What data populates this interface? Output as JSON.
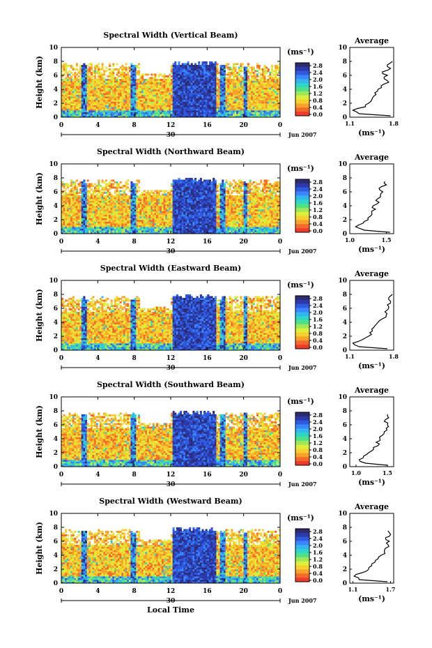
{
  "figure": {
    "x_axis_label": "Local Time",
    "month_label": "Jun 2007",
    "day_label": "30"
  },
  "colorbar": {
    "unit_label": "(ms⁻¹)",
    "ticks": [
      "2.8",
      "2.4",
      "2.0",
      "1.6",
      "1.2",
      "0.8",
      "0.4",
      "0.0"
    ],
    "colors": [
      "#2e2a6e",
      "#2b3aa8",
      "#2f5ae0",
      "#3a86ff",
      "#35b5f0",
      "#2ed6c8",
      "#4fe08a",
      "#9ce85a",
      "#dcef3c",
      "#f6d12e",
      "#f7a22a",
      "#f36a2a",
      "#ee3b2a"
    ]
  },
  "chart_data": [
    {
      "type": "heatmap",
      "title": "Spectral Width (Vertical Beam)",
      "ylabel": "Height (km)",
      "xlabel": "Local Time",
      "x_ticks": [
        "0",
        "4",
        "8",
        "12",
        "16",
        "20",
        "0"
      ],
      "y_ticks": [
        "0",
        "2",
        "4",
        "6",
        "8",
        "10"
      ],
      "xlim": [
        0,
        24
      ],
      "ylim": [
        0,
        10
      ],
      "colorbar_ticks": [
        "2.8",
        "2.4",
        "2.0",
        "1.6",
        "1.2",
        "0.8",
        "0.4",
        "0.0"
      ],
      "colorbar_range": [
        0,
        3.0
      ],
      "data_top_km": 7.8,
      "convective_bands_hours": [
        [
          2.2,
          2.8
        ],
        [
          7.7,
          8.2
        ],
        [
          12.2,
          17.0
        ],
        [
          17.4,
          18.0
        ],
        [
          20.0,
          20.4
        ]
      ],
      "average_profile": {
        "title": "Average",
        "xlabel": "(ms⁻¹)",
        "x_ticks": [
          "1.1",
          "1.8"
        ],
        "xlim": [
          1.1,
          1.8
        ],
        "ylim": [
          0,
          10
        ],
        "y_ticks": [
          "0",
          "2",
          "4",
          "6",
          "8",
          "10"
        ],
        "height_km": [
          0.2,
          0.5,
          1.0,
          1.5,
          2.0,
          2.5,
          3.0,
          3.5,
          4.0,
          4.5,
          5.0,
          5.5,
          6.0,
          6.5,
          7.0,
          7.5,
          8.0
        ],
        "width_ms": [
          1.75,
          1.25,
          1.15,
          1.35,
          1.4,
          1.45,
          1.48,
          1.5,
          1.55,
          1.6,
          1.72,
          1.65,
          1.7,
          1.62,
          1.75,
          1.7,
          1.78
        ]
      }
    },
    {
      "type": "heatmap",
      "title": "Spectral Width (Northward Beam)",
      "ylabel": "Height (km)",
      "xlabel": "Local Time",
      "x_ticks": [
        "0",
        "4",
        "8",
        "12",
        "16",
        "20",
        "0"
      ],
      "y_ticks": [
        "0",
        "2",
        "4",
        "6",
        "8",
        "10"
      ],
      "xlim": [
        0,
        24
      ],
      "ylim": [
        0,
        10
      ],
      "colorbar_ticks": [
        "2.8",
        "2.4",
        "2.0",
        "1.6",
        "1.2",
        "0.8",
        "0.4",
        "0.0"
      ],
      "colorbar_range": [
        0,
        3.0
      ],
      "data_top_km": 7.8,
      "convective_bands_hours": [
        [
          2.2,
          2.8
        ],
        [
          7.7,
          8.2
        ],
        [
          12.2,
          17.0
        ],
        [
          17.4,
          18.0
        ],
        [
          20.0,
          20.4
        ]
      ],
      "average_profile": {
        "title": "Average",
        "xlabel": "(ms⁻¹)",
        "x_ticks": [
          "1.0",
          "1.5"
        ],
        "xlim": [
          1.0,
          1.6
        ],
        "ylim": [
          0,
          10
        ],
        "y_ticks": [
          "0",
          "2",
          "4",
          "6",
          "8",
          "10"
        ],
        "height_km": [
          0.2,
          0.5,
          1.0,
          1.5,
          2.0,
          2.5,
          3.0,
          3.5,
          4.0,
          4.5,
          5.0,
          5.5,
          6.0,
          6.5,
          7.0,
          7.5
        ],
        "width_ms": [
          1.55,
          1.2,
          1.08,
          1.18,
          1.25,
          1.28,
          1.3,
          1.35,
          1.32,
          1.4,
          1.38,
          1.42,
          1.45,
          1.4,
          1.5,
          1.48
        ]
      }
    },
    {
      "type": "heatmap",
      "title": "Spectral Width (Eastward Beam)",
      "ylabel": "Height (km)",
      "xlabel": "Local Time",
      "x_ticks": [
        "0",
        "4",
        "8",
        "12",
        "16",
        "20",
        "0"
      ],
      "y_ticks": [
        "0",
        "2",
        "4",
        "6",
        "8",
        "10"
      ],
      "xlim": [
        0,
        24
      ],
      "ylim": [
        0,
        10
      ],
      "colorbar_ticks": [
        "2.8",
        "2.4",
        "2.0",
        "1.6",
        "1.2",
        "0.8",
        "0.4",
        "0.0"
      ],
      "colorbar_range": [
        0,
        3.0
      ],
      "data_top_km": 7.8,
      "convective_bands_hours": [
        [
          2.2,
          2.8
        ],
        [
          7.7,
          8.2
        ],
        [
          12.2,
          17.0
        ],
        [
          17.4,
          18.0
        ],
        [
          20.0,
          20.4
        ]
      ],
      "average_profile": {
        "title": "Average",
        "xlabel": "(ms⁻¹)",
        "x_ticks": [
          "1.1",
          "1.8"
        ],
        "xlim": [
          1.1,
          1.8
        ],
        "ylim": [
          0,
          10
        ],
        "y_ticks": [
          "0",
          "2",
          "4",
          "6",
          "8",
          "10"
        ],
        "height_km": [
          0.2,
          0.5,
          1.0,
          1.5,
          2.0,
          2.5,
          3.0,
          3.5,
          4.0,
          4.5,
          5.0,
          5.5,
          6.0,
          6.5,
          7.0,
          7.5,
          8.0
        ],
        "width_ms": [
          1.7,
          1.25,
          1.15,
          1.3,
          1.4,
          1.42,
          1.45,
          1.5,
          1.55,
          1.62,
          1.68,
          1.66,
          1.72,
          1.7,
          1.75,
          1.72,
          1.78
        ]
      }
    },
    {
      "type": "heatmap",
      "title": "Spectral Width (Southward Beam)",
      "ylabel": "Height (km)",
      "xlabel": "Local Time",
      "x_ticks": [
        "0",
        "4",
        "8",
        "12",
        "16",
        "20",
        "0"
      ],
      "y_ticks": [
        "0",
        "2",
        "4",
        "6",
        "8",
        "10"
      ],
      "xlim": [
        0,
        24
      ],
      "ylim": [
        0,
        10
      ],
      "colorbar_ticks": [
        "2.8",
        "2.4",
        "2.0",
        "1.6",
        "1.2",
        "0.8",
        "0.4",
        "0.0"
      ],
      "colorbar_range": [
        0,
        3.0
      ],
      "data_top_km": 7.8,
      "convective_bands_hours": [
        [
          2.2,
          2.8
        ],
        [
          7.7,
          8.2
        ],
        [
          12.2,
          17.0
        ],
        [
          17.4,
          18.0
        ],
        [
          20.0,
          20.4
        ]
      ],
      "average_profile": {
        "title": "Average",
        "xlabel": "(ms⁻¹)",
        "x_ticks": [
          "1.0",
          "1.5"
        ],
        "xlim": [
          0.9,
          1.6
        ],
        "ylim": [
          0,
          10
        ],
        "y_ticks": [
          "0",
          "2",
          "4",
          "6",
          "8",
          "10"
        ],
        "height_km": [
          0.2,
          0.5,
          1.0,
          1.5,
          2.0,
          2.5,
          3.0,
          3.5,
          4.0,
          4.5,
          5.0,
          5.5,
          6.0,
          6.5,
          7.0,
          7.5
        ],
        "width_ms": [
          1.5,
          1.15,
          1.05,
          1.12,
          1.2,
          1.28,
          1.35,
          1.32,
          1.38,
          1.42,
          1.45,
          1.48,
          1.5,
          1.45,
          1.52,
          1.5
        ]
      }
    },
    {
      "type": "heatmap",
      "title": "Spectral Width (Westward Beam)",
      "ylabel": "Height (km)",
      "xlabel": "Local Time",
      "x_ticks": [
        "0",
        "4",
        "8",
        "12",
        "16",
        "20",
        "0"
      ],
      "y_ticks": [
        "0",
        "2",
        "4",
        "6",
        "8",
        "10"
      ],
      "xlim": [
        0,
        24
      ],
      "ylim": [
        0,
        10
      ],
      "colorbar_ticks": [
        "2.8",
        "2.4",
        "2.0",
        "1.6",
        "1.2",
        "0.8",
        "0.4",
        "0.0"
      ],
      "colorbar_range": [
        0,
        3.0
      ],
      "data_top_km": 7.8,
      "convective_bands_hours": [
        [
          2.2,
          2.8
        ],
        [
          7.7,
          8.2
        ],
        [
          12.2,
          17.0
        ],
        [
          17.4,
          18.0
        ],
        [
          20.0,
          20.4
        ]
      ],
      "average_profile": {
        "title": "Average",
        "xlabel": "(ms⁻¹)",
        "x_ticks": [
          "1.1",
          "1.7"
        ],
        "xlim": [
          1.05,
          1.75
        ],
        "ylim": [
          0,
          10
        ],
        "y_ticks": [
          "0",
          "2",
          "4",
          "6",
          "8",
          "10"
        ],
        "height_km": [
          0.2,
          0.5,
          1.0,
          1.5,
          2.0,
          2.5,
          3.0,
          3.5,
          4.0,
          4.5,
          5.0,
          5.5,
          6.0,
          6.5,
          7.0,
          7.5
        ],
        "width_ms": [
          1.65,
          1.2,
          1.12,
          1.25,
          1.35,
          1.4,
          1.45,
          1.5,
          1.55,
          1.6,
          1.62,
          1.66,
          1.68,
          1.62,
          1.7,
          1.66
        ]
      }
    }
  ]
}
